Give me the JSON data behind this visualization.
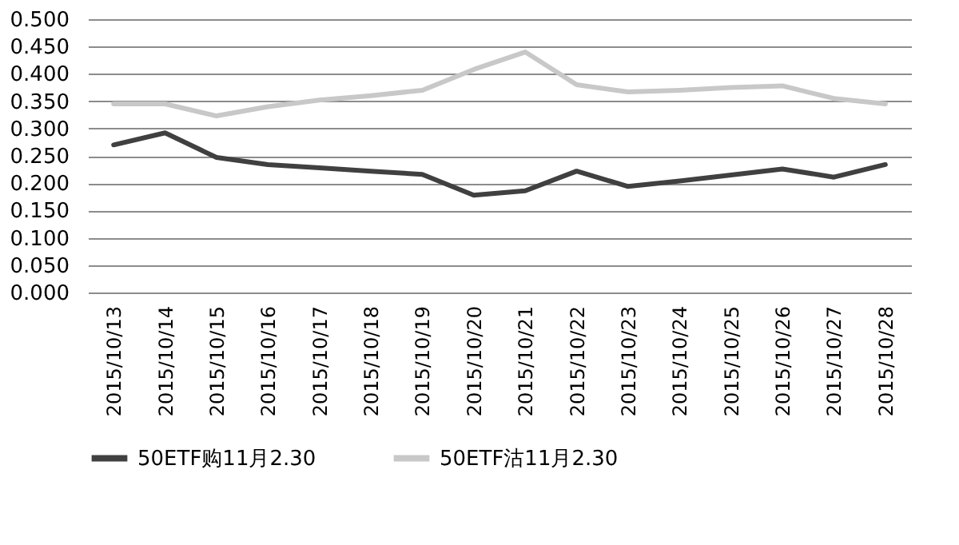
{
  "chart_data": {
    "type": "line",
    "categories": [
      "2015/10/13",
      "2015/10/14",
      "2015/10/15",
      "2015/10/16",
      "2015/10/17",
      "2015/10/18",
      "2015/10/19",
      "2015/10/20",
      "2015/10/21",
      "2015/10/22",
      "2015/10/23",
      "2015/10/24",
      "2015/10/25",
      "2015/10/26",
      "2015/10/27",
      "2015/10/28"
    ],
    "series": [
      {
        "name": "50ETF购11月2.30",
        "color": "#404040",
        "values": [
          0.27,
          0.292,
          0.247,
          0.234,
          0.228,
          0.222,
          0.216,
          0.178,
          0.186,
          0.222,
          0.194,
          0.204,
          0.215,
          0.226,
          0.211,
          0.234
        ]
      },
      {
        "name": "50ETF沽11月2.30",
        "color": "#c8c8c8",
        "values": [
          0.345,
          0.345,
          0.323,
          0.34,
          0.352,
          0.36,
          0.37,
          0.408,
          0.44,
          0.38,
          0.367,
          0.37,
          0.375,
          0.378,
          0.355,
          0.345
        ]
      }
    ],
    "ylim": [
      0,
      0.5
    ],
    "yticks": [
      {
        "value": 0,
        "label": "0.000"
      },
      {
        "value": 0.05,
        "label": "0.050"
      },
      {
        "value": 0.1,
        "label": "0.100"
      },
      {
        "value": 0.15,
        "label": "0.150"
      },
      {
        "value": 0.2,
        "label": "0.200"
      },
      {
        "value": 0.25,
        "label": "0.250"
      },
      {
        "value": 0.3,
        "label": "0.300"
      },
      {
        "value": 0.35,
        "label": "0.350"
      },
      {
        "value": 0.4,
        "label": "0.400"
      },
      {
        "value": 0.45,
        "label": "0.450"
      },
      {
        "value": 0.5,
        "label": "0.500"
      }
    ],
    "grid": "y",
    "legend": "bottom"
  }
}
